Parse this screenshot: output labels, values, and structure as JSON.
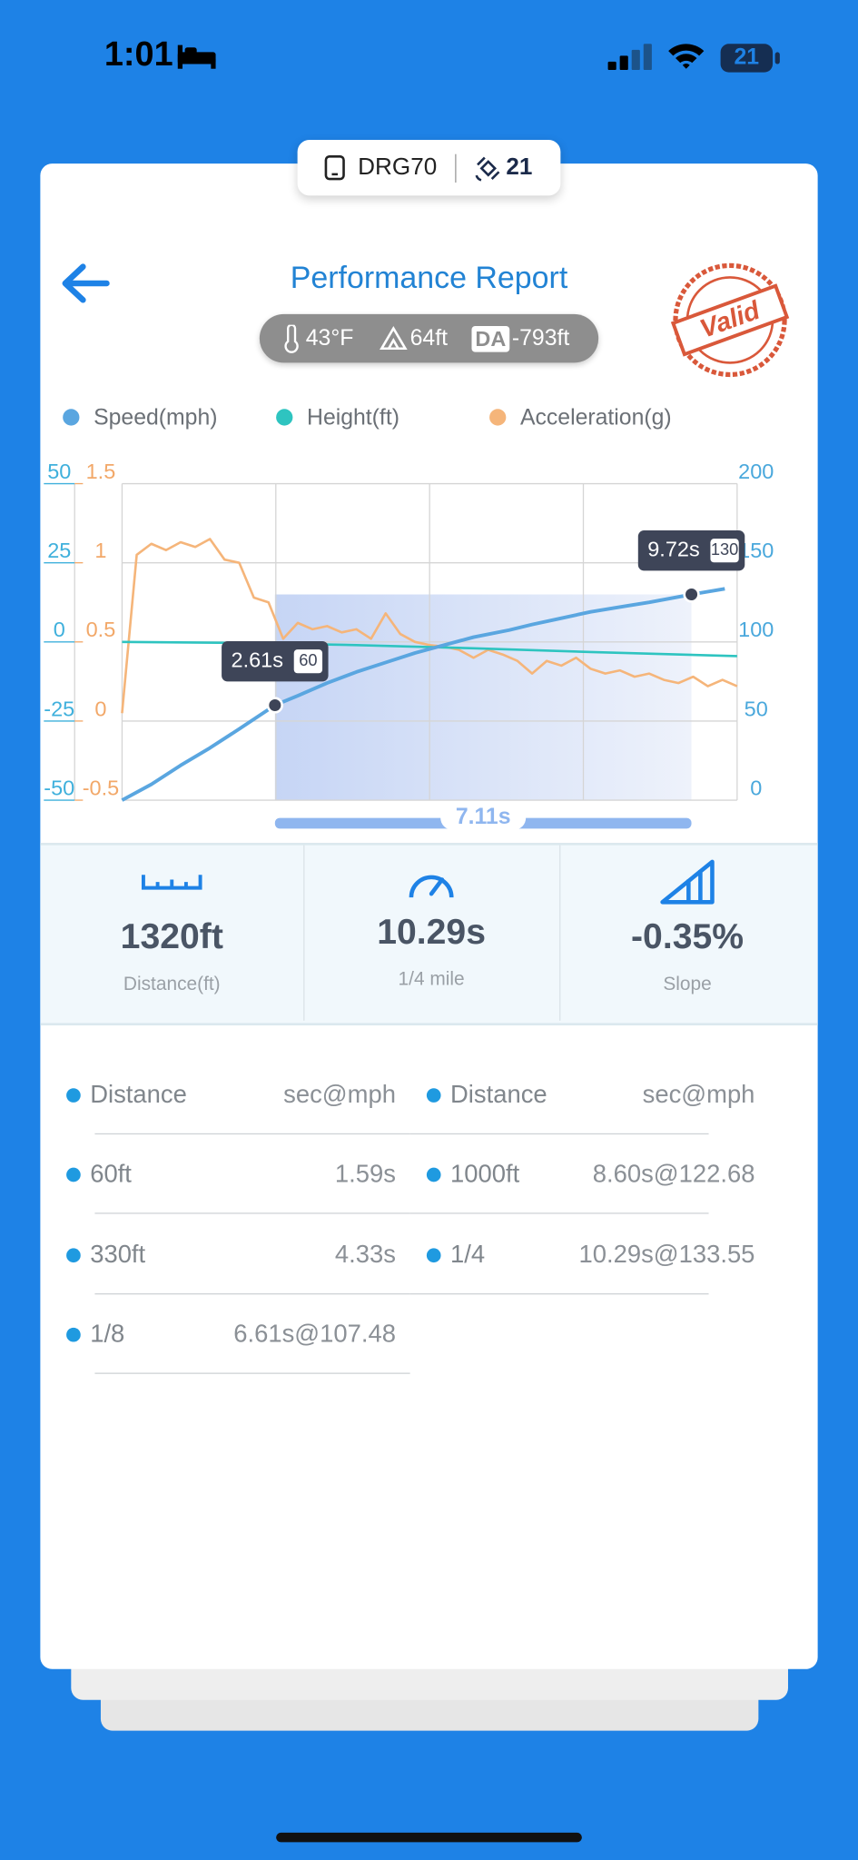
{
  "status_bar": {
    "time": "1:01",
    "battery": "21"
  },
  "device": {
    "name": "DRG70",
    "satellites": "21"
  },
  "header": {
    "title": "Performance Report",
    "temperature": "43°F",
    "altitude": "64ft",
    "da_label": "DA",
    "density_altitude": "-793ft",
    "stamp": "Valid"
  },
  "chart_data": {
    "type": "line",
    "xlim": [
      0,
      10.5
    ],
    "grid": true,
    "axes": {
      "height": {
        "lim": [
          -50,
          50
        ],
        "ticks": [
          -50,
          -25,
          0,
          25,
          50
        ],
        "color": "#3fb0dc"
      },
      "accel": {
        "lim": [
          -0.5,
          1.5
        ],
        "ticks": [
          -0.5,
          0,
          0.5,
          1,
          1.5
        ],
        "color": "#f2a869"
      },
      "speed": {
        "lim": [
          0,
          200
        ],
        "ticks": [
          0,
          50,
          100,
          150,
          200
        ],
        "color": "#4aa8dc"
      }
    },
    "series": [
      {
        "name": "Speed(mph)",
        "color": "#5aa6e0",
        "axis": "speed",
        "x": [
          0,
          0.5,
          1,
          1.5,
          2,
          2.61,
          3,
          3.5,
          4,
          4.5,
          5,
          5.5,
          6,
          6.61,
          7,
          7.5,
          8,
          8.6,
          9,
          9.72,
          10.29
        ],
        "values": [
          0,
          10,
          22,
          33,
          45,
          60,
          66,
          74,
          81,
          87,
          93,
          98,
          103,
          107.48,
          111,
          115,
          119,
          122.68,
          125,
          130,
          133.55
        ]
      },
      {
        "name": "Height(ft)",
        "color": "#2ec4c0",
        "axis": "height",
        "x": [
          0,
          2,
          4,
          6,
          8,
          10.5
        ],
        "values": [
          0,
          -0.3,
          -1,
          -2,
          -3.2,
          -4.5
        ]
      },
      {
        "name": "Acceleration(g)",
        "color": "#f5b57a",
        "axis": "accel",
        "x": [
          0,
          0.25,
          0.5,
          0.75,
          1,
          1.25,
          1.5,
          1.75,
          2,
          2.25,
          2.5,
          2.75,
          3,
          3.25,
          3.5,
          3.75,
          4,
          4.25,
          4.5,
          4.75,
          5,
          5.25,
          5.5,
          5.75,
          6,
          6.25,
          6.5,
          6.75,
          7,
          7.25,
          7.5,
          7.75,
          8,
          8.25,
          8.5,
          8.75,
          9,
          9.25,
          9.5,
          9.75,
          10,
          10.25,
          10.5
        ],
        "values": [
          0.05,
          1.05,
          1.12,
          1.08,
          1.13,
          1.1,
          1.15,
          1.02,
          1.0,
          0.78,
          0.75,
          0.52,
          0.62,
          0.58,
          0.6,
          0.56,
          0.58,
          0.52,
          0.68,
          0.55,
          0.5,
          0.48,
          0.47,
          0.45,
          0.4,
          0.45,
          0.42,
          0.38,
          0.3,
          0.38,
          0.35,
          0.4,
          0.33,
          0.3,
          0.32,
          0.28,
          0.3,
          0.26,
          0.24,
          0.28,
          0.22,
          0.26,
          0.22
        ]
      }
    ],
    "markers": [
      {
        "x": 2.61,
        "label": "2.61s",
        "value": 60
      },
      {
        "x": 9.72,
        "label": "9.72s",
        "value": 130
      }
    ],
    "range_label": "7.11s"
  },
  "stats": [
    {
      "value": "1320ft",
      "label": "Distance(ft)"
    },
    {
      "value": "10.29s",
      "label": "1/4 mile"
    },
    {
      "value": "-0.35%",
      "label": "Slope"
    }
  ],
  "splits": {
    "left": [
      [
        "Distance",
        "sec@mph"
      ],
      [
        "60ft",
        "1.59s"
      ],
      [
        "330ft",
        "4.33s"
      ],
      [
        "1/8",
        "6.61s@107.48"
      ]
    ],
    "right": [
      [
        "Distance",
        "sec@mph"
      ],
      [
        "1000ft",
        "8.60s@122.68"
      ],
      [
        "1/4",
        "10.29s@133.55"
      ]
    ]
  }
}
